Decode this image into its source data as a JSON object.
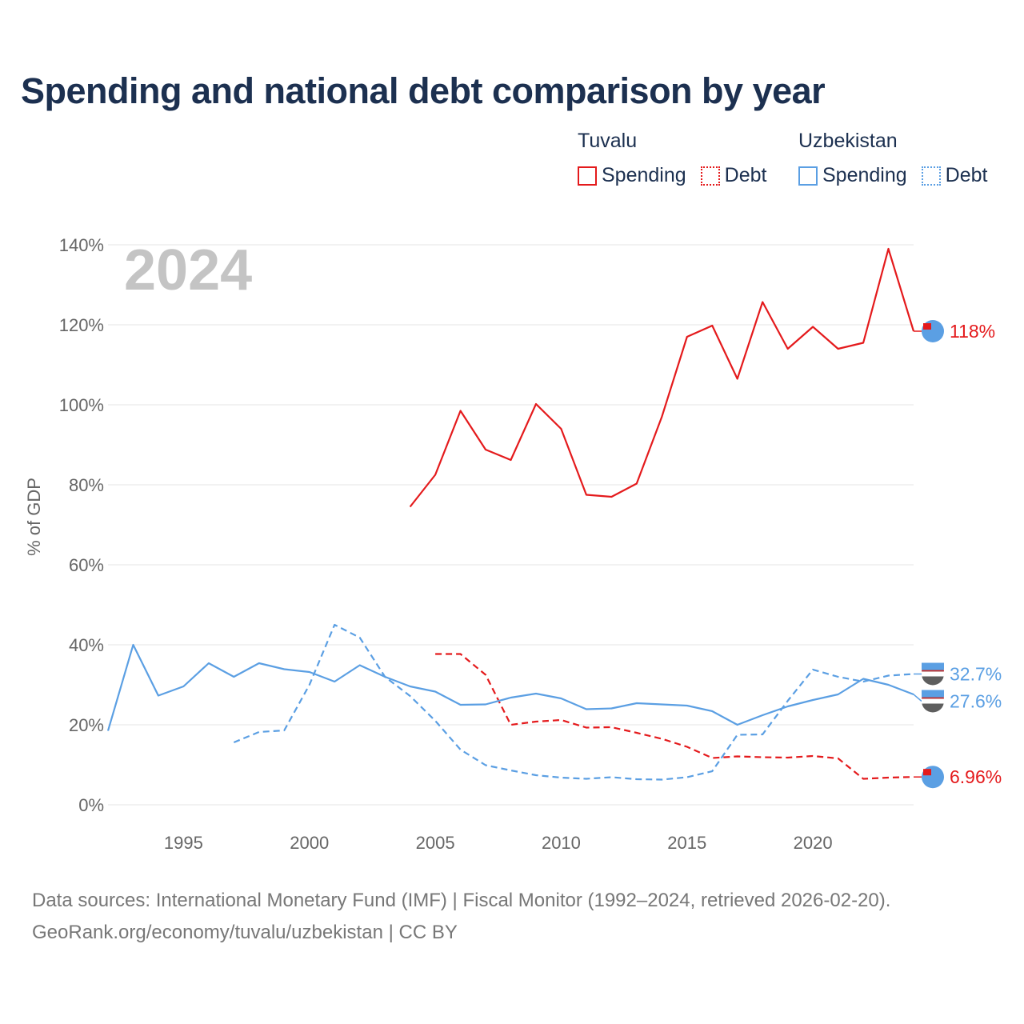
{
  "title": "Spending and national debt comparison by year",
  "legend": {
    "groups": [
      {
        "name": "Tuvalu",
        "items": [
          {
            "label": "Spending"
          },
          {
            "label": "Debt"
          }
        ]
      },
      {
        "name": "Uzbekistan",
        "items": [
          {
            "label": "Spending"
          },
          {
            "label": "Debt"
          }
        ]
      }
    ]
  },
  "source": {
    "line1": "Data sources: International Monetary Fund (IMF) | Fiscal Monitor (1992–2024, retrieved 2026-02-20).",
    "line2": "GeoRank.org/economy/tuvalu/uzbekistan | CC BY"
  },
  "colors": {
    "tuvalu": "#e41a1c",
    "uzbekistan": "#5b9fe3",
    "grid": "#e6e6e6",
    "axis_text": "#666666",
    "year_watermark": "#c4c4c4"
  },
  "chart_data": {
    "type": "line",
    "year_label": "2024",
    "ylabel": "% of GDP",
    "xlim": [
      1992,
      2024
    ],
    "ylim": [
      0,
      140
    ],
    "yticks": [
      0,
      20,
      40,
      60,
      80,
      100,
      120,
      140
    ],
    "ytick_labels": [
      "0%",
      "20%",
      "40%",
      "60%",
      "80%",
      "100%",
      "120%",
      "140%"
    ],
    "xticks": [
      1995,
      2000,
      2005,
      2010,
      2015,
      2020
    ],
    "xtick_labels": [
      "1995",
      "2000",
      "2005",
      "2010",
      "2015",
      "2020"
    ],
    "series": [
      {
        "name": "Tuvalu Spending",
        "country": "tuvalu",
        "style": "solid",
        "x": [
          2004,
          2005,
          2006,
          2007,
          2008,
          2009,
          2010,
          2011,
          2012,
          2013,
          2014,
          2015,
          2016,
          2017,
          2018,
          2019,
          2020,
          2021,
          2022,
          2023,
          2024
        ],
        "values": [
          74.5,
          82.5,
          98.5,
          88.8,
          86.2,
          100.2,
          94.0,
          77.5,
          77.0,
          80.3,
          97.0,
          117.0,
          119.8,
          106.5,
          125.7,
          114.0,
          119.5,
          114.0,
          115.5,
          139.0,
          118.4
        ],
        "end_label": "118%"
      },
      {
        "name": "Tuvalu Debt",
        "country": "tuvalu",
        "style": "dashed",
        "x": [
          2005,
          2006,
          2007,
          2008,
          2009,
          2010,
          2011,
          2012,
          2013,
          2014,
          2015,
          2016,
          2017,
          2018,
          2019,
          2020,
          2021,
          2022,
          2023,
          2024
        ],
        "values": [
          37.7,
          37.7,
          32.5,
          20.0,
          20.8,
          21.2,
          19.3,
          19.4,
          18.0,
          16.5,
          14.5,
          11.7,
          12.1,
          11.9,
          11.8,
          12.2,
          11.6,
          6.5,
          6.8,
          6.96
        ],
        "end_label": "6.96%"
      },
      {
        "name": "Uzbekistan Spending",
        "country": "uzbekistan",
        "style": "solid",
        "x": [
          1992,
          1993,
          1994,
          1995,
          1996,
          1997,
          1998,
          1999,
          2000,
          2001,
          2002,
          2003,
          2004,
          2005,
          2006,
          2007,
          2008,
          2009,
          2010,
          2011,
          2012,
          2013,
          2014,
          2015,
          2016,
          2017,
          2018,
          2019,
          2020,
          2021,
          2022,
          2023,
          2024
        ],
        "values": [
          18.5,
          40.0,
          27.3,
          29.6,
          35.4,
          32.0,
          35.4,
          33.9,
          33.2,
          30.8,
          34.9,
          32.0,
          29.6,
          28.3,
          25.0,
          25.1,
          26.8,
          27.8,
          26.6,
          23.9,
          24.1,
          25.4,
          25.1,
          24.8,
          23.4,
          20.0,
          22.4,
          24.6,
          26.2,
          27.6,
          31.5,
          30.0,
          27.6
        ],
        "end_label": "27.6%"
      },
      {
        "name": "Uzbekistan Debt",
        "country": "uzbekistan",
        "style": "dashed",
        "x": [
          1997,
          1998,
          1999,
          2000,
          2001,
          2002,
          2003,
          2004,
          2005,
          2006,
          2007,
          2008,
          2009,
          2010,
          2011,
          2012,
          2013,
          2014,
          2015,
          2016,
          2017,
          2018,
          2019,
          2020,
          2021,
          2022,
          2023,
          2024
        ],
        "values": [
          15.6,
          18.2,
          18.6,
          30.0,
          45.0,
          41.8,
          32.0,
          27.2,
          21.0,
          13.8,
          9.9,
          8.6,
          7.4,
          6.8,
          6.5,
          6.9,
          6.4,
          6.3,
          6.9,
          8.4,
          17.5,
          17.6,
          26.0,
          33.8,
          32.0,
          30.8,
          32.3,
          32.7
        ],
        "end_label": "32.7%"
      }
    ]
  }
}
